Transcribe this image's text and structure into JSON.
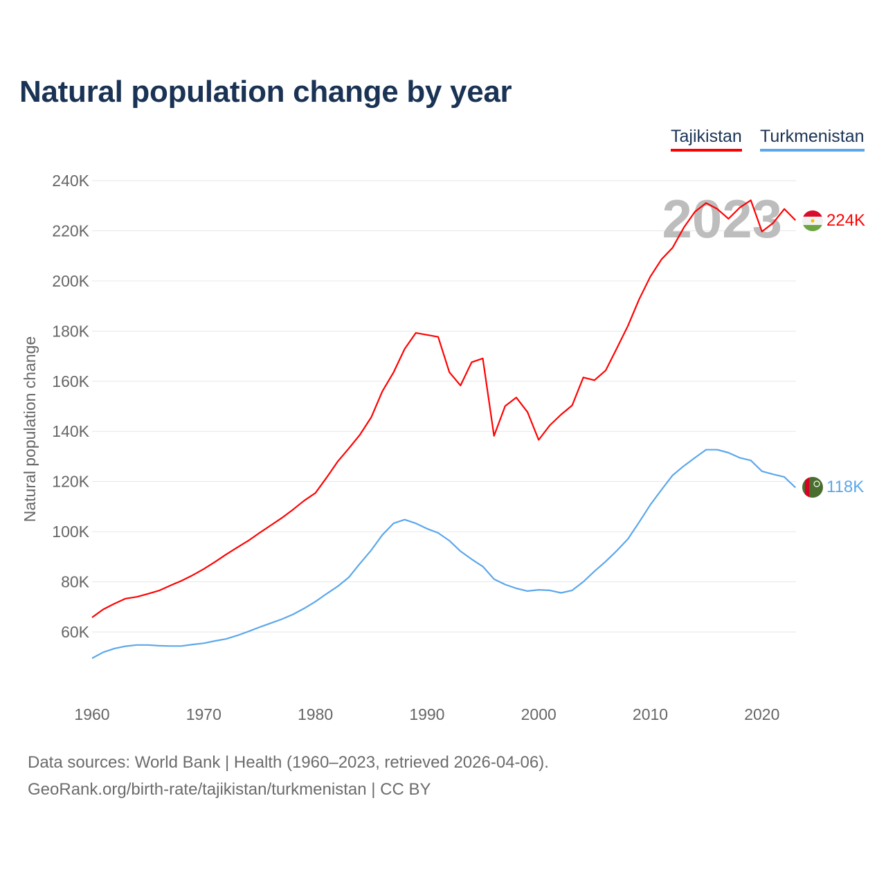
{
  "chart_data": {
    "type": "line",
    "title": "Natural population change by year",
    "xlabel": "",
    "ylabel": "Natural population change",
    "xlim": [
      1960,
      2023
    ],
    "ylim": [
      40000,
      245000
    ],
    "x_ticks": [
      1960,
      1970,
      1980,
      1990,
      2000,
      2010,
      2020
    ],
    "y_ticks": [
      60000,
      80000,
      100000,
      120000,
      140000,
      160000,
      180000,
      200000,
      220000,
      240000
    ],
    "y_tick_labels": [
      "60K",
      "80K",
      "100K",
      "120K",
      "140K",
      "160K",
      "180K",
      "200K",
      "220K",
      "240K"
    ],
    "grid": true,
    "legend_position": "top-right",
    "year_watermark": "2023",
    "series": [
      {
        "name": "Tajikistan",
        "color": "#ff0000",
        "end_label": "224K",
        "values": [
          65800,
          69000,
          71300,
          73300,
          74000,
          75200,
          76500,
          78500,
          80400,
          82600,
          85100,
          87900,
          90900,
          93700,
          96400,
          99500,
          102500,
          105500,
          108800,
          112400,
          115400,
          121500,
          128000,
          133200,
          138700,
          145600,
          156000,
          163500,
          172900,
          179300,
          178500,
          177700,
          163600,
          158300,
          167600,
          169100,
          138200,
          150100,
          153500,
          147700,
          136600,
          142400,
          146700,
          150400,
          161500,
          160400,
          164300,
          173100,
          182100,
          192700,
          201700,
          208600,
          213300,
          221300,
          227600,
          231100,
          228700,
          224800,
          229200,
          232200,
          219700,
          223100,
          228700,
          224200
        ]
      },
      {
        "name": "Turkmenistan",
        "color": "#5ba7eb",
        "end_label": "118K",
        "values": [
          49500,
          51900,
          53400,
          54300,
          54800,
          54800,
          54500,
          54400,
          54400,
          55000,
          55500,
          56400,
          57200,
          58600,
          60200,
          61900,
          63500,
          65100,
          67000,
          69400,
          72100,
          75200,
          78200,
          81800,
          87300,
          92600,
          98700,
          103300,
          104800,
          103300,
          101200,
          99500,
          96400,
          92200,
          89000,
          86100,
          81100,
          78900,
          77400,
          76300,
          76800,
          76600,
          75600,
          76600,
          80000,
          84200,
          88100,
          92400,
          97100,
          103800,
          110700,
          116700,
          122500,
          126200,
          129500,
          132700,
          132700,
          131500,
          129500,
          128400,
          124100,
          122900,
          121800,
          117600
        ]
      }
    ]
  },
  "footer": {
    "line1": "Data sources: World Bank | Health (1960–2023, retrieved 2026-04-06).",
    "line2": "GeoRank.org/birth-rate/tajikistan/turkmenistan | CC BY"
  }
}
